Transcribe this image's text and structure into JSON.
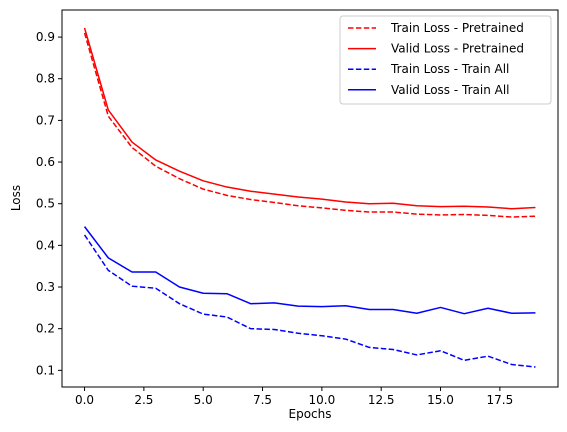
{
  "chart_data": {
    "type": "line",
    "title": "",
    "xlabel": "Epochs",
    "ylabel": "Loss",
    "xlim": [
      -0.95,
      19.95
    ],
    "ylim": [
      0.06,
      0.965
    ],
    "grid": false,
    "legend_position": "top-right",
    "x": [
      0,
      1,
      2,
      3,
      4,
      5,
      6,
      7,
      8,
      9,
      10,
      11,
      12,
      13,
      14,
      15,
      16,
      17,
      18,
      19
    ],
    "xticks": [
      0.0,
      2.5,
      5.0,
      7.5,
      10.0,
      12.5,
      15.0,
      17.5
    ],
    "xtick_labels": [
      "0.0",
      "2.5",
      "5.0",
      "7.5",
      "10.0",
      "12.5",
      "15.0",
      "17.5"
    ],
    "yticks": [
      0.1,
      0.2,
      0.3,
      0.4,
      0.5,
      0.6,
      0.7,
      0.8,
      0.9
    ],
    "ytick_labels": [
      "0.1",
      "0.2",
      "0.3",
      "0.4",
      "0.5",
      "0.6",
      "0.7",
      "0.8",
      "0.9"
    ],
    "series": [
      {
        "name": "Train Loss - Pretrained",
        "color": "#ff0000",
        "style": "dashed",
        "values": [
          0.91,
          0.71,
          0.635,
          0.59,
          0.56,
          0.535,
          0.52,
          0.51,
          0.503,
          0.495,
          0.49,
          0.484,
          0.48,
          0.48,
          0.475,
          0.473,
          0.474,
          0.472,
          0.468,
          0.47
        ]
      },
      {
        "name": "Valid Loss - Pretrained",
        "color": "#ff0000",
        "style": "solid",
        "values": [
          0.922,
          0.725,
          0.648,
          0.605,
          0.578,
          0.555,
          0.54,
          0.53,
          0.523,
          0.516,
          0.511,
          0.504,
          0.5,
          0.501,
          0.495,
          0.493,
          0.494,
          0.492,
          0.488,
          0.491
        ]
      },
      {
        "name": "Train Loss - Train All",
        "color": "#0000ff",
        "style": "dashed",
        "values": [
          0.425,
          0.34,
          0.302,
          0.297,
          0.26,
          0.235,
          0.228,
          0.2,
          0.198,
          0.189,
          0.183,
          0.175,
          0.155,
          0.15,
          0.137,
          0.147,
          0.124,
          0.134,
          0.114,
          0.108
        ]
      },
      {
        "name": "Valid Loss - Train All",
        "color": "#0000ff",
        "style": "solid",
        "values": [
          0.445,
          0.37,
          0.336,
          0.336,
          0.3,
          0.285,
          0.284,
          0.26,
          0.262,
          0.254,
          0.253,
          0.255,
          0.246,
          0.246,
          0.237,
          0.251,
          0.236,
          0.249,
          0.237,
          0.238
        ]
      }
    ]
  }
}
